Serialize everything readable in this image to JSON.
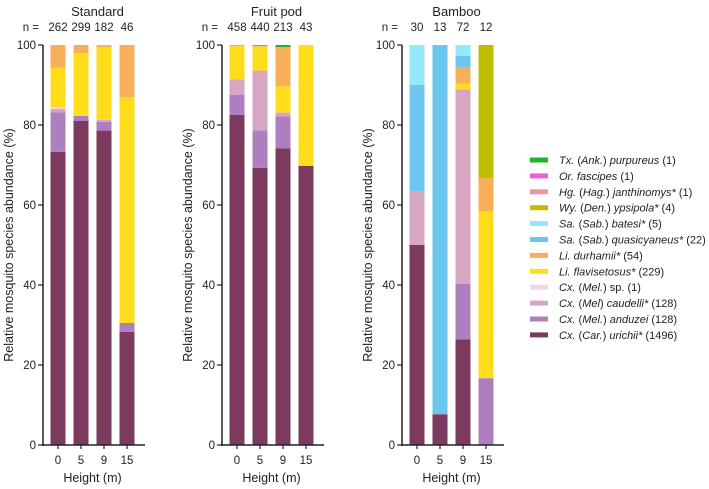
{
  "chart_data": {
    "type": "bar",
    "stacked": true,
    "ylabel": "Relative mosquito species abundance (%)",
    "xlabel": "Height (m)",
    "ylim": [
      0,
      100
    ],
    "yticks": [
      0,
      20,
      40,
      60,
      80,
      100
    ],
    "categories": [
      "0",
      "5",
      "9",
      "15"
    ],
    "n_prefix": "n =",
    "legend_position": "right",
    "species": [
      {
        "key": "urichii",
        "color": "#7b3a5e",
        "label": [
          [
            "Cx.",
            1
          ],
          [
            " (",
            0
          ],
          [
            "Car.",
            1
          ],
          [
            ") ",
            0
          ],
          [
            "urichii*",
            1
          ],
          [
            " (1496)",
            0
          ]
        ]
      },
      {
        "key": "anduzei",
        "color": "#ad7fc0",
        "label": [
          [
            "Cx.",
            1
          ],
          [
            " (",
            0
          ],
          [
            "Mel.",
            1
          ],
          [
            ") ",
            0
          ],
          [
            "anduzei",
            1
          ],
          [
            " (128)",
            0
          ]
        ]
      },
      {
        "key": "caudelli",
        "color": "#d6a6c2",
        "label": [
          [
            "Cx.",
            1
          ],
          [
            " (",
            0
          ],
          [
            "Mel",
            1
          ],
          [
            ") ",
            0
          ],
          [
            "caudelli*",
            1
          ],
          [
            " (128)",
            0
          ]
        ]
      },
      {
        "key": "melsp",
        "color": "#ecd8e6",
        "label": [
          [
            "Cx.",
            1
          ],
          [
            " (",
            0
          ],
          [
            "Mel.",
            1
          ],
          [
            ") sp. (1)",
            0
          ]
        ]
      },
      {
        "key": "flavisetosus",
        "color": "#ffdd1a",
        "label": [
          [
            "Li. flavisetosus*",
            1
          ],
          [
            " (229)",
            0
          ]
        ]
      },
      {
        "key": "durhamii",
        "color": "#f9ae5a",
        "label": [
          [
            "Li. durhamii*",
            1
          ],
          [
            " (54)",
            0
          ]
        ]
      },
      {
        "key": "quasicyaneus",
        "color": "#6cc6ee",
        "label": [
          [
            "Sa.",
            1
          ],
          [
            " (",
            0
          ],
          [
            "Sab.",
            1
          ],
          [
            ") ",
            0
          ],
          [
            "quasicyaneus*",
            1
          ],
          [
            " (22)",
            0
          ]
        ]
      },
      {
        "key": "batesi",
        "color": "#95e7fb",
        "label": [
          [
            "Sa.",
            1
          ],
          [
            " (",
            0
          ],
          [
            "Sab.",
            1
          ],
          [
            ") ",
            0
          ],
          [
            "batesi*",
            1
          ],
          [
            " (5)",
            0
          ]
        ]
      },
      {
        "key": "ypsipola",
        "color": "#bfbf00",
        "label": [
          [
            "Wy.",
            1
          ],
          [
            " (",
            0
          ],
          [
            "Den.",
            1
          ],
          [
            ") ",
            0
          ],
          [
            "ypsipola*",
            1
          ],
          [
            " (4)",
            0
          ]
        ]
      },
      {
        "key": "janthinomys",
        "color": "#eb95a8",
        "label": [
          [
            "Hg.",
            1
          ],
          [
            " (",
            0
          ],
          [
            "Hag.",
            1
          ],
          [
            ") ",
            0
          ],
          [
            "janthinomys*",
            1
          ],
          [
            " (1)",
            0
          ]
        ]
      },
      {
        "key": "fascipes",
        "color": "#f25fd6",
        "label": [
          [
            "Or. fascipes",
            1
          ],
          [
            " (1)",
            0
          ]
        ]
      },
      {
        "key": "purpureus",
        "color": "#1fb32a",
        "label": [
          [
            "Tx.",
            1
          ],
          [
            " (",
            0
          ],
          [
            "Ank.",
            1
          ],
          [
            ") ",
            0
          ],
          [
            "purpureus",
            1
          ],
          [
            " (1)",
            0
          ]
        ]
      }
    ],
    "panels": [
      {
        "title": "Standard",
        "n": [
          "262",
          "299",
          "182",
          "46"
        ],
        "bars": [
          {
            "urichii": 73.3,
            "anduzei": 9.9,
            "caudelli": 0.8,
            "melsp": 0.4,
            "flavisetosus": 9.9,
            "durhamii": 5.7
          },
          {
            "urichii": 81.0,
            "anduzei": 1.3,
            "flavisetosus": 15.7,
            "durhamii": 2.0
          },
          {
            "urichii": 78.6,
            "anduzei": 2.2,
            "caudelli": 0.5,
            "flavisetosus": 18.1,
            "durhamii": 0.6
          },
          {
            "urichii": 28.3,
            "anduzei": 2.2,
            "flavisetosus": 56.5,
            "durhamii": 13.0
          }
        ]
      },
      {
        "title": "Fruit pod",
        "n": [
          "458",
          "440",
          "213",
          "43"
        ],
        "bars": [
          {
            "urichii": 82.5,
            "anduzei": 5.0,
            "caudelli": 3.9,
            "flavisetosus": 8.3,
            "durhamii": 0.3
          },
          {
            "urichii": 69.3,
            "anduzei": 9.3,
            "caudelli": 15.0,
            "flavisetosus": 6.1,
            "fascipes": 0.3
          },
          {
            "urichii": 74.2,
            "anduzei": 8.0,
            "caudelli": 0.9,
            "flavisetosus": 6.6,
            "durhamii": 9.8,
            "purpureus": 0.5
          },
          {
            "urichii": 69.8,
            "flavisetosus": 30.2
          }
        ]
      },
      {
        "title": "Bamboo",
        "n": [
          "30",
          "13",
          "72",
          "12"
        ],
        "bars": [
          {
            "urichii": 50.0,
            "caudelli": 13.3,
            "quasicyaneus": 26.7,
            "batesi": 10.0
          },
          {
            "urichii": 7.7,
            "quasicyaneus": 92.3
          },
          {
            "urichii": 26.4,
            "anduzei": 13.9,
            "caudelli": 48.6,
            "flavisetosus": 1.4,
            "durhamii": 4.2,
            "quasicyaneus": 2.8,
            "batesi": 2.7
          },
          {
            "anduzei": 16.7,
            "flavisetosus": 41.7,
            "durhamii": 8.3,
            "ypsipola": 33.3
          }
        ]
      }
    ]
  }
}
